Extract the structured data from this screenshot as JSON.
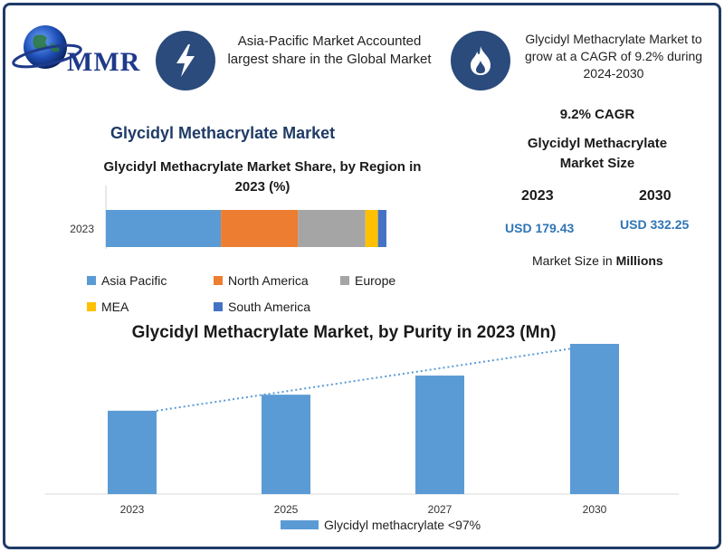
{
  "brand": {
    "logo_text": "MMR"
  },
  "highlights": {
    "region_text": "Asia-Pacific Market Accounted largest share in the Global Market",
    "growth_text": "Glycidyl Methacrylate Market to grow at a CAGR of 9.2% during 2024-2030"
  },
  "market_title": "Glycidyl Methacrylate Market",
  "summary": {
    "cagr": "9.2% CAGR",
    "size_title": "Glycidyl Methacrylate Market Size",
    "year_start": "2023",
    "year_end": "2030",
    "value_start": "USD 179.43",
    "value_end": "USD 332.25",
    "unit_prefix": "Market Size in ",
    "unit_bold": "Millions"
  },
  "colors": {
    "brand_navy": "#1f3b66",
    "asia_pacific": "#5b9bd5",
    "north_america": "#ed7d31",
    "europe": "#a5a5a5",
    "mea": "#ffc000",
    "south_america": "#4472c4",
    "purity_bar": "#5b9bd5"
  },
  "icons": [
    "lightning-bolt-icon",
    "flame-icon",
    "globe-icon"
  ],
  "chart_data": [
    {
      "type": "bar",
      "orientation": "horizontal-stacked",
      "title": "Glycidyl Methacrylate Market Share, by Region in 2023 (%)",
      "categories": [
        "2023"
      ],
      "series": [
        {
          "name": "Asia Pacific",
          "values": [
            41
          ]
        },
        {
          "name": "North America",
          "values": [
            27.5
          ]
        },
        {
          "name": "Europe",
          "values": [
            24
          ]
        },
        {
          "name": "MEA",
          "values": [
            4.5
          ]
        },
        {
          "name": "South America",
          "values": [
            3
          ]
        }
      ],
      "xlim": [
        0,
        100
      ],
      "grid": false,
      "legend_position": "bottom"
    },
    {
      "type": "bar",
      "title": "Glycidyl Methacrylate Market, by Purity in 2023 (Mn)",
      "categories": [
        "2023",
        "2025",
        "2027",
        "2030"
      ],
      "series": [
        {
          "name": "Glycidyl methacrylate <97%",
          "values": [
            179.43,
            213.96,
            255.1,
            332.25
          ]
        }
      ],
      "trendline": "dotted linear",
      "ylim": [
        0,
        340
      ],
      "grid": false,
      "legend_position": "bottom"
    }
  ]
}
